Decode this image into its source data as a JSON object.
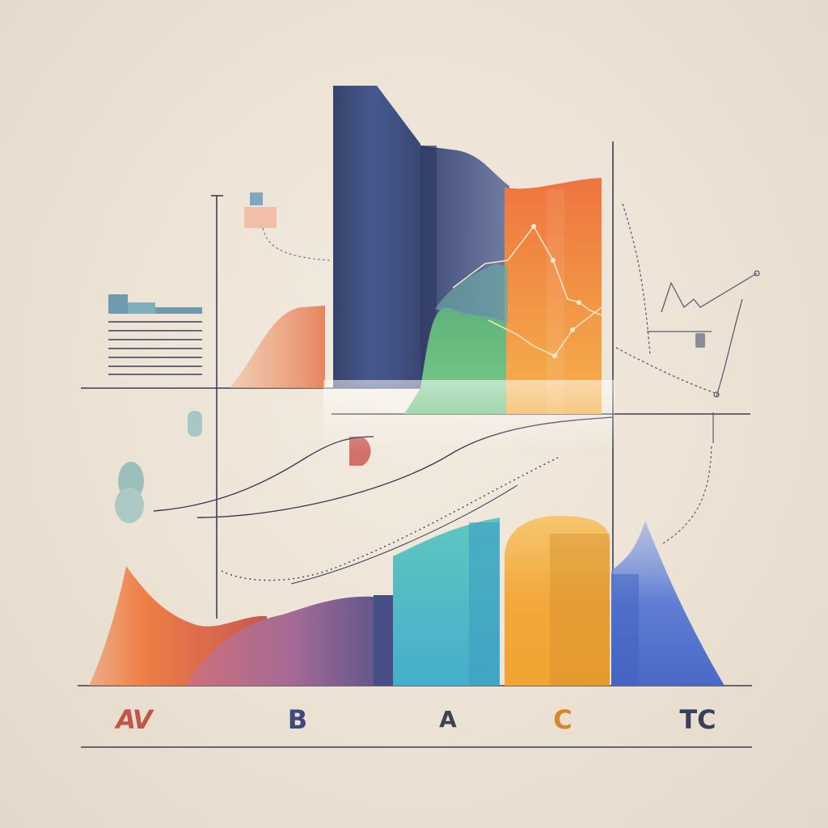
{
  "labels": {
    "l1": "AV",
    "l2": "B",
    "l3": "A",
    "l4": "C",
    "l5": "TC"
  },
  "colors": {
    "navy": "#3c4a72",
    "orange": "#ef7f3c",
    "green": "#6cbf7a",
    "teal": "#4db2c7",
    "gold": "#f0a73a",
    "blue": "#5b78cf",
    "coral": "#e9835b",
    "axis": "#3b3f55"
  }
}
